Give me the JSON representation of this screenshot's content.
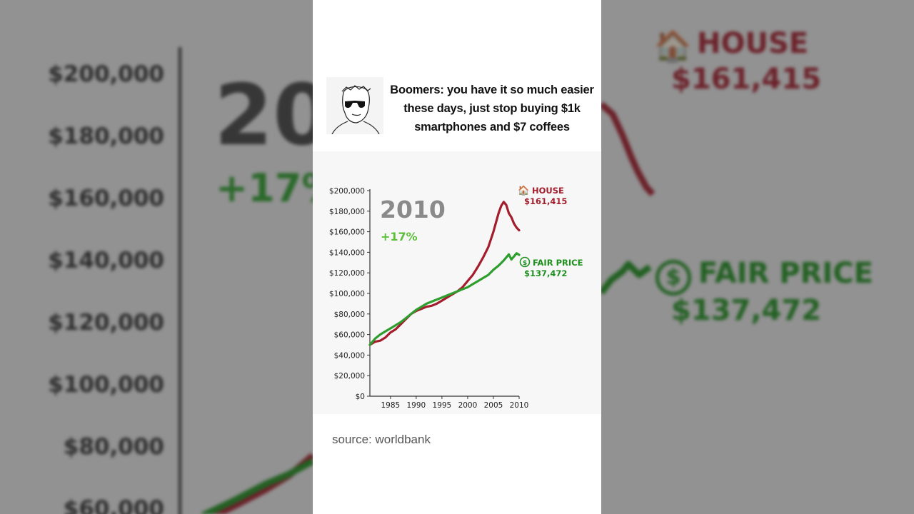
{
  "meme": {
    "caption": "Boomers: you have it so much easier these days, just stop buying $1k smartphones and $7 coffees",
    "avatar_icon": "sunglasses-wojak-drawing-icon"
  },
  "source": "source: worldbank",
  "colors": {
    "house": "#a31d2c",
    "fair_price": "#2e9e2e",
    "axis": "#333333",
    "year": "#8a8a8a"
  },
  "chart_data": {
    "type": "line",
    "year_label": "2010",
    "change_label": "+17%",
    "y_ticks": [
      "$0",
      "$20,000",
      "$40,000",
      "$60,000",
      "$80,000",
      "$100,000",
      "$120,000",
      "$140,000",
      "$160,000",
      "$180,000",
      "$200,000"
    ],
    "x_ticks": [
      "1985",
      "1990",
      "1995",
      "2000",
      "2005",
      "2010"
    ],
    "ylim": [
      0,
      200000
    ],
    "xlim": [
      1981,
      2010
    ],
    "grid": false,
    "series": [
      {
        "name": "HOUSE",
        "end_label": "$161,415",
        "icon": "house-icon",
        "x": [
          1981,
          1982,
          1983,
          1984,
          1985,
          1986,
          1987,
          1988,
          1989,
          1990,
          1991,
          1992,
          1993,
          1994,
          1995,
          1996,
          1997,
          1998,
          1999,
          2000,
          2001,
          2002,
          2003,
          2004,
          2005,
          2006,
          2006.5,
          2007,
          2007.5,
          2008,
          2008.5,
          2009,
          2009.5,
          2010
        ],
        "values": [
          50000,
          53000,
          54000,
          57000,
          62000,
          65000,
          70000,
          75000,
          80000,
          83000,
          85000,
          87000,
          88000,
          90000,
          93000,
          96000,
          99000,
          102000,
          106000,
          112000,
          118000,
          126000,
          135000,
          145000,
          160000,
          178000,
          185000,
          189000,
          186000,
          178000,
          174000,
          168000,
          164000,
          161415
        ]
      },
      {
        "name": "FAIR PRICE",
        "end_label": "$137,472",
        "icon": "dollar-circle-icon",
        "x": [
          1981,
          1982,
          1983,
          1984,
          1985,
          1986,
          1987,
          1988,
          1989,
          1990,
          1991,
          1992,
          1993,
          1994,
          1995,
          1996,
          1997,
          1998,
          1999,
          2000,
          2001,
          2002,
          2003,
          2004,
          2005,
          2006,
          2007,
          2008,
          2008.5,
          2009,
          2009.5,
          2010
        ],
        "values": [
          50000,
          56000,
          60000,
          63000,
          66000,
          69000,
          72000,
          76000,
          80000,
          84000,
          87000,
          90000,
          92000,
          94000,
          96000,
          98000,
          100000,
          102000,
          104000,
          106000,
          109000,
          112000,
          115000,
          118000,
          123000,
          127000,
          132000,
          138000,
          133000,
          136000,
          139000,
          137472
        ]
      }
    ]
  }
}
